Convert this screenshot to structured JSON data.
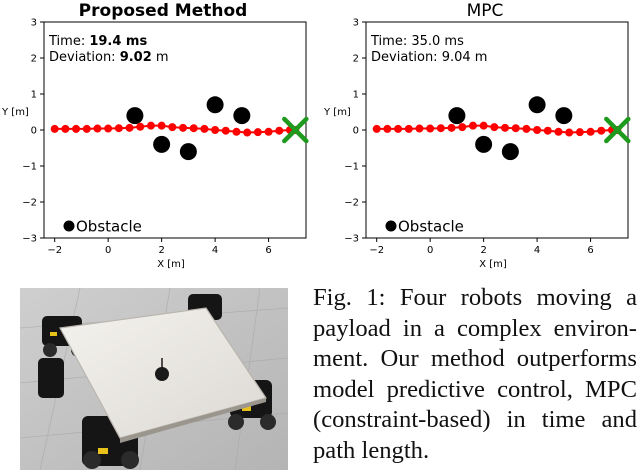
{
  "chart_data": [
    {
      "type": "scatter",
      "title": "Proposed Method",
      "title_bold": true,
      "xlabel": "X [m]",
      "ylabel": "Y [m]",
      "xlim": [
        -2.4,
        7.4
      ],
      "ylim": [
        -3,
        3
      ],
      "xticks": [
        -2,
        0,
        2,
        4,
        6
      ],
      "yticks": [
        -3,
        -2,
        -1,
        0,
        1,
        2,
        3
      ],
      "annotation": {
        "time_label": "Time: ",
        "time_value": "19.4 ms",
        "deviation_label": "Deviation: ",
        "deviation_value": "9.02",
        "deviation_unit": " m",
        "values_bold": true
      },
      "legend": {
        "label": "Obstacle",
        "position": "bottom-left"
      },
      "path": {
        "color": "#ff0000",
        "x": [
          -2.0,
          -1.6,
          -1.2,
          -0.8,
          -0.4,
          0.0,
          0.4,
          0.8,
          1.2,
          1.6,
          2.0,
          2.4,
          2.8,
          3.2,
          3.6,
          4.0,
          4.4,
          4.8,
          5.2,
          5.6,
          6.0,
          6.4,
          6.8,
          7.0
        ],
        "y": [
          0.03,
          0.03,
          0.03,
          0.03,
          0.04,
          0.04,
          0.05,
          0.06,
          0.09,
          0.12,
          0.12,
          0.08,
          0.06,
          0.05,
          0.03,
          0.0,
          -0.02,
          -0.05,
          -0.07,
          -0.06,
          -0.05,
          -0.02,
          0.0,
          0.0
        ]
      },
      "obstacles": {
        "color": "#000000",
        "x": [
          1.0,
          2.0,
          3.0,
          4.0,
          5.0
        ],
        "y": [
          0.4,
          -0.4,
          -0.6,
          0.7,
          0.4
        ]
      },
      "goal": {
        "marker": "x",
        "color": "#1e9a1e",
        "x": 7.0,
        "y": 0.0
      }
    },
    {
      "type": "scatter",
      "title": "MPC",
      "title_bold": false,
      "xlabel": "X [m]",
      "ylabel": "Y [m]",
      "xlim": [
        -2.4,
        7.4
      ],
      "ylim": [
        -3,
        3
      ],
      "xticks": [
        -2,
        0,
        2,
        4,
        6
      ],
      "yticks": [
        -3,
        -2,
        -1,
        0,
        1,
        2,
        3
      ],
      "annotation": {
        "time_label": "Time: ",
        "time_value": "35.0 ms",
        "deviation_label": "Deviation: ",
        "deviation_value": "9.04",
        "deviation_unit": " m",
        "values_bold": false
      },
      "legend": {
        "label": "Obstacle",
        "position": "bottom-left"
      },
      "path": {
        "color": "#ff0000",
        "x": [
          -2.0,
          -1.6,
          -1.2,
          -0.8,
          -0.4,
          0.0,
          0.4,
          0.8,
          1.2,
          1.6,
          2.0,
          2.4,
          2.8,
          3.2,
          3.6,
          4.0,
          4.4,
          4.8,
          5.2,
          5.6,
          6.0,
          6.4,
          6.8,
          7.0
        ],
        "y": [
          0.03,
          0.03,
          0.03,
          0.03,
          0.04,
          0.04,
          0.05,
          0.06,
          0.08,
          0.12,
          0.12,
          0.08,
          0.06,
          0.05,
          0.03,
          0.0,
          -0.02,
          -0.05,
          -0.07,
          -0.06,
          -0.05,
          -0.02,
          0.0,
          0.0
        ]
      },
      "obstacles": {
        "color": "#000000",
        "x": [
          1.0,
          2.0,
          3.0,
          4.0,
          5.0
        ],
        "y": [
          0.4,
          -0.4,
          -0.6,
          0.7,
          0.4
        ]
      },
      "goal": {
        "marker": "x",
        "color": "#1e9a1e",
        "x": 7.0,
        "y": 0.0
      }
    }
  ],
  "caption": {
    "text": "Fig. 1: Four robots moving a payload in a complex environ-ment. Our method outperforms model predictive control, MPC (constraint-based) in time and path length."
  }
}
